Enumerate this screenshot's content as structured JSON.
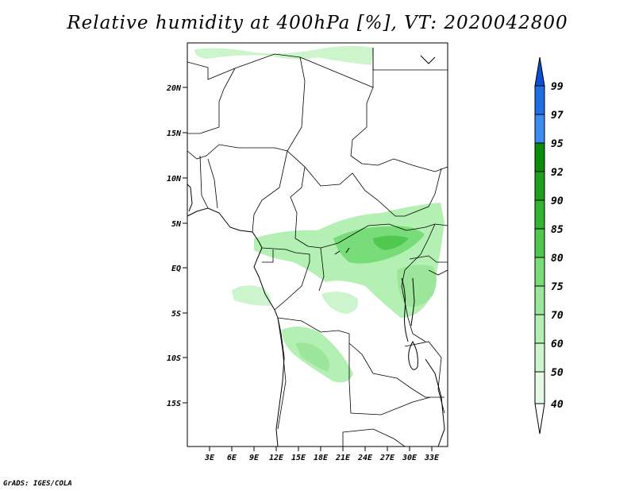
{
  "title": "Relative humidity at 400hPa [%], VT: 2020042800",
  "credit": "GrADS: IGES/COLA",
  "map": {
    "lat_labels": [
      "20N",
      "15N",
      "10N",
      "5N",
      "EQ",
      "5S",
      "10S",
      "15S"
    ],
    "lon_labels": [
      "3E",
      "6E",
      "9E",
      "12E",
      "15E",
      "18E",
      "21E",
      "24E",
      "27E",
      "30E",
      "33E"
    ]
  },
  "colorbar": {
    "levels": [
      "40",
      "50",
      "60",
      "70",
      "75",
      "80",
      "85",
      "90",
      "92",
      "95",
      "97",
      "99"
    ],
    "colors": [
      "#ffffff",
      "#e6fae6",
      "#cdf5cd",
      "#b4f0b4",
      "#9be69b",
      "#78dc78",
      "#50c850",
      "#32b432",
      "#1ea01e",
      "#0a8c0a",
      "#3c8cf0",
      "#1e6ee6",
      "#0a50d2"
    ]
  }
}
